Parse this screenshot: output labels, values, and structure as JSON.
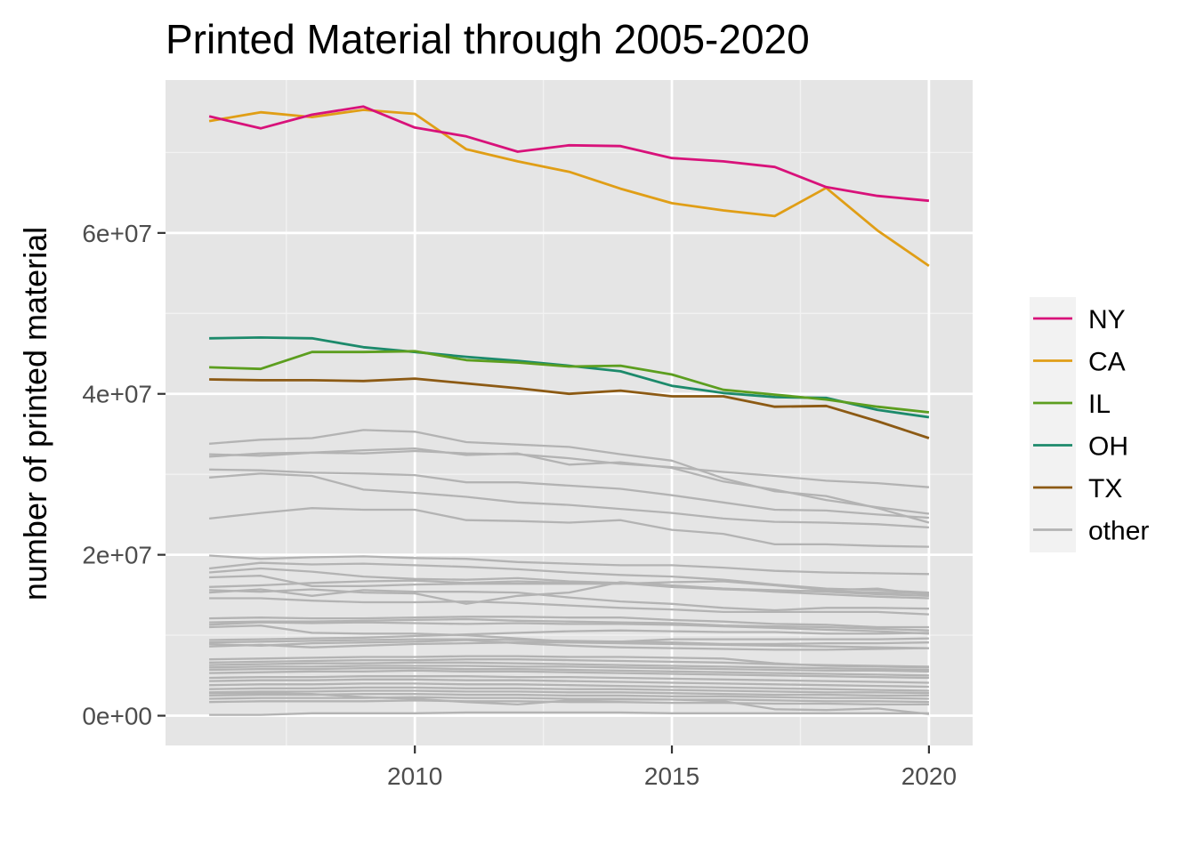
{
  "chart_data": {
    "type": "line",
    "title": "Printed Material through 2005-2020",
    "xlabel": "",
    "ylabel": "number of printed material",
    "xlim": [
      2005.15,
      2020.85
    ],
    "ylim": [
      -3700000,
      79000000
    ],
    "x_ticks": [
      {
        "value": 2010,
        "label": "2010"
      },
      {
        "value": 2015,
        "label": "2015"
      },
      {
        "value": 2020,
        "label": "2020"
      }
    ],
    "x_minor_ticks": [
      2007.5,
      2012.5,
      2017.5
    ],
    "y_ticks": [
      {
        "value": 0,
        "label": "0e+00"
      },
      {
        "value": 20000000,
        "label": "2e+07"
      },
      {
        "value": 40000000,
        "label": "4e+07"
      },
      {
        "value": 60000000,
        "label": "6e+07"
      }
    ],
    "y_minor_ticks": [
      10000000,
      30000000,
      50000000,
      70000000
    ],
    "background": "#e5e5e5",
    "grid": true,
    "legend_position": "right",
    "x": [
      2006,
      2007,
      2008,
      2009,
      2010,
      2011,
      2012,
      2013,
      2014,
      2015,
      2016,
      2017,
      2018,
      2019,
      2020
    ],
    "series": [
      {
        "name": "other",
        "color": "#b3b3b3",
        "values": [
          33800000,
          34300000,
          34500000,
          35500000,
          35300000,
          34000000,
          33700000,
          33400000,
          32500000,
          31700000,
          29500000,
          27900000,
          27300000,
          25800000,
          24000000
        ]
      },
      {
        "name": "other",
        "color": "#b3b3b3",
        "values": [
          32500000,
          32300000,
          32700000,
          32600000,
          32900000,
          32600000,
          32500000,
          32000000,
          31300000,
          30900000,
          30300000,
          29800000,
          29200000,
          28900000,
          28400000
        ]
      },
      {
        "name": "other",
        "color": "#b3b3b3",
        "values": [
          32200000,
          32600000,
          32700000,
          33000000,
          33200000,
          32400000,
          32600000,
          31200000,
          31500000,
          30800000,
          29100000,
          28100000,
          26800000,
          25900000,
          25100000
        ]
      },
      {
        "name": "other",
        "color": "#b3b3b3",
        "values": [
          30600000,
          30500000,
          30200000,
          30100000,
          29900000,
          29000000,
          29000000,
          28600000,
          28200000,
          27400000,
          26500000,
          25600000,
          25500000,
          25000000,
          24600000
        ]
      },
      {
        "name": "other",
        "color": "#b3b3b3",
        "values": [
          29600000,
          30100000,
          29800000,
          28100000,
          27700000,
          27200000,
          26500000,
          26200000,
          25700000,
          25200000,
          24500000,
          24100000,
          24000000,
          23800000,
          23400000
        ]
      },
      {
        "name": "other",
        "color": "#b3b3b3",
        "values": [
          24500000,
          25200000,
          25800000,
          25600000,
          25600000,
          24300000,
          24200000,
          24000000,
          24300000,
          23100000,
          22600000,
          21300000,
          21300000,
          21100000,
          21000000
        ]
      },
      {
        "name": "other",
        "color": "#b3b3b3",
        "values": [
          19900000,
          19500000,
          19700000,
          19800000,
          19600000,
          19500000,
          19100000,
          18900000,
          18700000,
          18700000,
          18400000,
          18000000,
          17800000,
          17700000,
          17600000
        ]
      },
      {
        "name": "other",
        "color": "#b3b3b3",
        "values": [
          18300000,
          19000000,
          18800000,
          18900000,
          18700000,
          18500000,
          18200000,
          17800000,
          17500000,
          17300000,
          16900000,
          16300000,
          15800000,
          15600000,
          15300000
        ]
      },
      {
        "name": "other",
        "color": "#b3b3b3",
        "values": [
          17800000,
          18300000,
          17900000,
          17300000,
          17000000,
          16900000,
          17100000,
          16700000,
          16500000,
          16100000,
          15800000,
          15600000,
          15400000,
          15100000,
          14900000
        ]
      },
      {
        "name": "other",
        "color": "#b3b3b3",
        "values": [
          17200000,
          17400000,
          16100000,
          16100000,
          16300000,
          16400000,
          16400000,
          16400000,
          16400000,
          16600000,
          16700000,
          16200000,
          15600000,
          15800000,
          15000000
        ]
      },
      {
        "name": "other",
        "color": "#b3b3b3",
        "values": [
          16000000,
          16200000,
          16500000,
          16700000,
          16800000,
          16500000,
          16700000,
          16500000,
          16500000,
          16000000,
          15700000,
          15500000,
          15500000,
          15300000,
          15200000
        ]
      },
      {
        "name": "other",
        "color": "#b3b3b3",
        "values": [
          15600000,
          15400000,
          15700000,
          15300000,
          15200000,
          13900000,
          14900000,
          15300000,
          16600000,
          16200000,
          15800000,
          15400000,
          15100000,
          14800000,
          14600000
        ]
      },
      {
        "name": "other",
        "color": "#b3b3b3",
        "values": [
          15300000,
          15700000,
          14900000,
          15600000,
          15400000,
          15400000,
          15300000,
          14700000,
          14200000,
          13900000,
          13400000,
          13100000,
          13400000,
          13400000,
          13300000
        ]
      },
      {
        "name": "other",
        "color": "#b3b3b3",
        "values": [
          14600000,
          14600000,
          14300000,
          14100000,
          14100000,
          14200000,
          14000000,
          13700000,
          13400000,
          13200000,
          12900000,
          12900000,
          12900000,
          12900000,
          12600000
        ]
      },
      {
        "name": "other",
        "color": "#b3b3b3",
        "values": [
          12100000,
          12200000,
          12100000,
          12100000,
          12200000,
          12300000,
          12300000,
          12200000,
          12200000,
          11900000,
          11700000,
          11400000,
          11300000,
          11000000,
          11000000
        ]
      },
      {
        "name": "other",
        "color": "#b3b3b3",
        "values": [
          11600000,
          11700000,
          11700000,
          11800000,
          11900000,
          12000000,
          11800000,
          11700000,
          11600000,
          11500000,
          11200000,
          11100000,
          11000000,
          10800000,
          10600000
        ]
      },
      {
        "name": "other",
        "color": "#b3b3b3",
        "values": [
          11300000,
          11600000,
          11500000,
          11600000,
          11500000,
          11400000,
          11500000,
          11400000,
          11400000,
          11300000,
          11100000,
          10900000,
          10700000,
          10500000,
          10200000
        ]
      },
      {
        "name": "other",
        "color": "#b3b3b3",
        "values": [
          11000000,
          11200000,
          10300000,
          10200000,
          10200000,
          10000000,
          9600000,
          9200000,
          9200000,
          9500000,
          9500000,
          9500000,
          9500000,
          9500000,
          9600000
        ]
      },
      {
        "name": "other",
        "color": "#b3b3b3",
        "values": [
          9400000,
          9500000,
          9600000,
          9700000,
          9900000,
          10100000,
          10300000,
          10500000,
          10600000,
          10500000,
          10400000,
          10400000,
          10200000,
          10200000,
          10300000
        ]
      },
      {
        "name": "other",
        "color": "#b3b3b3",
        "values": [
          9100000,
          9200000,
          9300000,
          9400000,
          9500000,
          9500000,
          9400000,
          9300000,
          9200000,
          9100000,
          8900000,
          8900000,
          9000000,
          9000000,
          9100000
        ]
      },
      {
        "name": "other",
        "color": "#b3b3b3",
        "values": [
          8900000,
          8700000,
          9000000,
          9100000,
          9200000,
          9400000,
          9000000,
          8700000,
          8500000,
          8400000,
          8300000,
          8200000,
          8200000,
          8300000,
          8400000
        ]
      },
      {
        "name": "other",
        "color": "#b3b3b3",
        "values": [
          8600000,
          8800000,
          8500000,
          8700000,
          8900000,
          9000000,
          9100000,
          9100000,
          9000000,
          8900000,
          8800000,
          8700000,
          8600000,
          8500000,
          8400000
        ]
      },
      {
        "name": "other",
        "color": "#b3b3b3",
        "values": [
          7000000,
          7100000,
          7200000,
          7300000,
          7300000,
          7400000,
          7400000,
          7300000,
          7300000,
          7200000,
          7100000,
          6500000,
          6200000,
          6100000,
          6000000
        ]
      },
      {
        "name": "other",
        "color": "#b3b3b3",
        "values": [
          6600000,
          6700000,
          6800000,
          6900000,
          6900000,
          7000000,
          7000000,
          6900000,
          6800000,
          6700000,
          6600000,
          6400000,
          6300000,
          6200000,
          6100000
        ]
      },
      {
        "name": "other",
        "color": "#b3b3b3",
        "values": [
          6300000,
          6400000,
          6500000,
          6500000,
          6600000,
          6600000,
          6500000,
          6400000,
          6300000,
          6200000,
          6100000,
          6000000,
          5900000,
          5800000,
          5700000
        ]
      },
      {
        "name": "other",
        "color": "#b3b3b3",
        "values": [
          6000000,
          6100000,
          6100000,
          6200000,
          6200000,
          6200000,
          6100000,
          6100000,
          6000000,
          5900000,
          5800000,
          5700000,
          5600000,
          5600000,
          5500000
        ]
      },
      {
        "name": "other",
        "color": "#b3b3b3",
        "values": [
          5700000,
          5800000,
          5800000,
          5900000,
          5900000,
          5800000,
          5800000,
          5700000,
          5600000,
          5500000,
          5400000,
          5300000,
          5200000,
          5100000,
          5000000
        ]
      },
      {
        "name": "other",
        "color": "#b3b3b3",
        "values": [
          5300000,
          5400000,
          5500000,
          5500000,
          5600000,
          5500000,
          5500000,
          5400000,
          5300000,
          5200000,
          5100000,
          5000000,
          4900000,
          4800000,
          4700000
        ]
      },
      {
        "name": "other",
        "color": "#b3b3b3",
        "values": [
          4700000,
          4800000,
          4800000,
          4900000,
          4900000,
          4900000,
          4800000,
          4800000,
          4700000,
          4600000,
          4500000,
          4400000,
          4300000,
          4200000,
          4100000
        ]
      },
      {
        "name": "other",
        "color": "#b3b3b3",
        "values": [
          4300000,
          4400000,
          4400000,
          4500000,
          4500000,
          4400000,
          4400000,
          4300000,
          4200000,
          4100000,
          4000000,
          3900000,
          3800000,
          3700000,
          3600000
        ]
      },
      {
        "name": "other",
        "color": "#b3b3b3",
        "values": [
          3800000,
          3900000,
          3900000,
          4000000,
          4000000,
          3900000,
          3900000,
          3800000,
          3700000,
          3600000,
          3500000,
          3400000,
          3300000,
          3200000,
          3100000
        ]
      },
      {
        "name": "other",
        "color": "#b3b3b3",
        "values": [
          3300000,
          3400000,
          3400000,
          3500000,
          3500000,
          3400000,
          3400000,
          3300000,
          3300000,
          3200000,
          3100000,
          3000000,
          2900000,
          2900000,
          2800000
        ]
      },
      {
        "name": "other",
        "color": "#b3b3b3",
        "values": [
          2900000,
          3000000,
          3000000,
          3100000,
          3100000,
          3000000,
          3000000,
          2900000,
          2900000,
          2800000,
          2700000,
          2600000,
          2600000,
          2500000,
          2500000
        ]
      },
      {
        "name": "other",
        "color": "#b3b3b3",
        "values": [
          2500000,
          2600000,
          2600000,
          2700000,
          2700000,
          2600000,
          2600000,
          2500000,
          2500000,
          2400000,
          2400000,
          2300000,
          2200000,
          2200000,
          2100000
        ]
      },
      {
        "name": "other",
        "color": "#b3b3b3",
        "values": [
          2100000,
          2200000,
          2200000,
          2200000,
          2300000,
          2200000,
          2200000,
          2100000,
          2100000,
          2000000,
          2000000,
          1900000,
          1800000,
          1800000,
          1700000
        ]
      },
      {
        "name": "other",
        "color": "#b3b3b3",
        "values": [
          1700000,
          1800000,
          1800000,
          1800000,
          1900000,
          1800000,
          1800000,
          1700000,
          1700000,
          1600000,
          1600000,
          1500000,
          1500000,
          1400000,
          1400000
        ]
      },
      {
        "name": "other",
        "color": "#b3b3b3",
        "values": [
          2800000,
          2800000,
          2700000,
          2300000,
          2100000,
          1700000,
          1400000,
          1900000,
          2000000,
          2000000,
          1800000,
          800000,
          700000,
          900000,
          200000
        ]
      },
      {
        "name": "other",
        "color": "#b3b3b3",
        "values": [
          100000,
          100000,
          300000,
          300000,
          300000,
          400000,
          400000,
          400000,
          400000,
          300000,
          300000,
          300000,
          300000,
          300000,
          300000
        ]
      },
      {
        "name": "TX",
        "color": "#8c5a14",
        "values": [
          41800000,
          41700000,
          41700000,
          41600000,
          41900000,
          41300000,
          40700000,
          40000000,
          40400000,
          39700000,
          39700000,
          38400000,
          38500000,
          36600000,
          34500000
        ]
      },
      {
        "name": "OH",
        "color": "#1c8a6b",
        "values": [
          46900000,
          47000000,
          46900000,
          45800000,
          45200000,
          44600000,
          44100000,
          43500000,
          42800000,
          41000000,
          40100000,
          39600000,
          39500000,
          38000000,
          37100000
        ]
      },
      {
        "name": "IL",
        "color": "#5c9e1f",
        "values": [
          43300000,
          43100000,
          45200000,
          45200000,
          45300000,
          44200000,
          43900000,
          43400000,
          43500000,
          42400000,
          40500000,
          39900000,
          39300000,
          38400000,
          37700000
        ]
      },
      {
        "name": "CA",
        "color": "#e09e16",
        "values": [
          73900000,
          75000000,
          74400000,
          75300000,
          74800000,
          70400000,
          68900000,
          67600000,
          65500000,
          63700000,
          62800000,
          62100000,
          65600000,
          60300000,
          55900000
        ]
      },
      {
        "name": "NY",
        "color": "#d8127a",
        "values": [
          74500000,
          73000000,
          74700000,
          75700000,
          73100000,
          72000000,
          70100000,
          70900000,
          70800000,
          69300000,
          68900000,
          68200000,
          65700000,
          64600000,
          64000000
        ]
      }
    ],
    "legend": [
      {
        "label": "NY",
        "color": "#d8127a"
      },
      {
        "label": "CA",
        "color": "#e09e16"
      },
      {
        "label": "IL",
        "color": "#5c9e1f"
      },
      {
        "label": "OH",
        "color": "#1c8a6b"
      },
      {
        "label": "TX",
        "color": "#8c5a14"
      },
      {
        "label": "other",
        "color": "#b3b3b3"
      }
    ]
  }
}
